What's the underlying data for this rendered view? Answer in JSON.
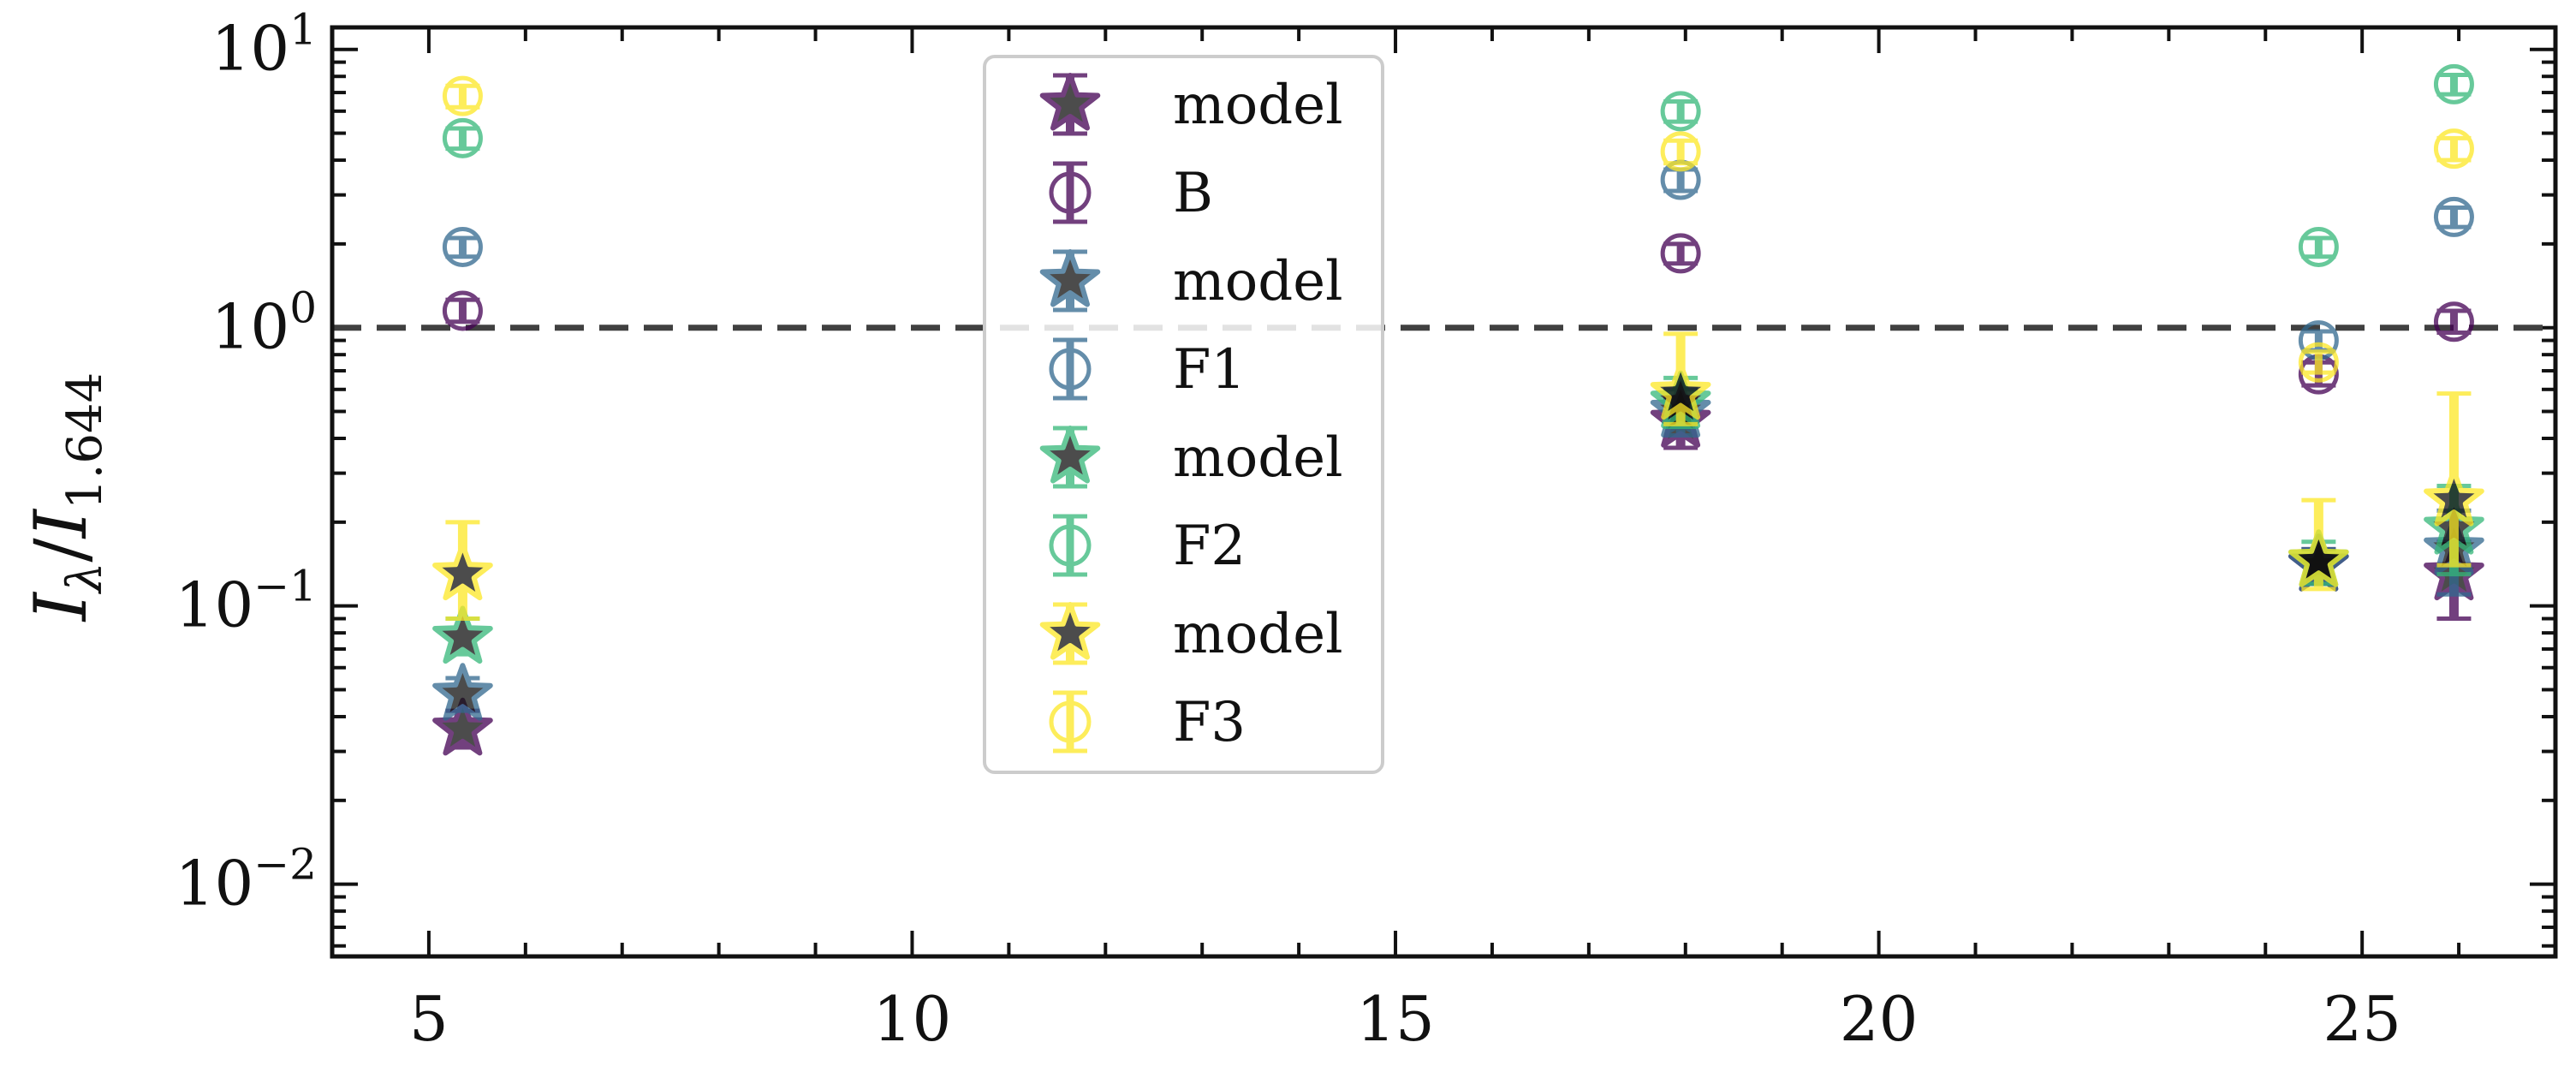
{
  "chart_data": {
    "type": "scatter",
    "title": "",
    "xlabel": "",
    "ylabel": "Iλ/I1.644",
    "ylabel_main": "I",
    "ylabel_sub1": "λ",
    "ylabel_sub2": "1.644",
    "xlim": [
      4,
      27
    ],
    "ylim": [
      0.0055,
      12
    ],
    "yscale": "log",
    "xticks": [
      5,
      10,
      15,
      20,
      25
    ],
    "xtick_labels": [
      "5",
      "10",
      "15",
      "20",
      "25"
    ],
    "yticks": [
      0.01,
      0.1,
      1,
      10
    ],
    "ytick_labels": [
      {
        "base": "10",
        "exp": "−2"
      },
      {
        "base": "10",
        "exp": "−1"
      },
      {
        "base": "10",
        "exp": "0"
      },
      {
        "base": "10",
        "exp": "1"
      }
    ],
    "reference_line": {
      "y": 1,
      "style": "dashed",
      "color": "#404040"
    },
    "grid": false,
    "legend": {
      "placement": "upper-center",
      "entries": [
        {
          "label": "model",
          "marker": "star",
          "color": "#440154"
        },
        {
          "label": "B",
          "marker": "circle",
          "color": "#440154"
        },
        {
          "label": "model",
          "marker": "star",
          "color": "#31688e"
        },
        {
          "label": "F1",
          "marker": "circle",
          "color": "#31688e"
        },
        {
          "label": "model",
          "marker": "star",
          "color": "#35b779"
        },
        {
          "label": "F2",
          "marker": "circle",
          "color": "#35b779"
        },
        {
          "label": "model",
          "marker": "star",
          "color": "#fde725"
        },
        {
          "label": "F3",
          "marker": "circle",
          "color": "#fde725"
        }
      ]
    },
    "series": [
      {
        "label": "B",
        "kind": "observed",
        "color": "#440154",
        "points": [
          {
            "x": 5.35,
            "y": 1.15,
            "lo": 1.05,
            "hi": 1.26
          },
          {
            "x": 17.95,
            "y": 1.85,
            "lo": 1.7,
            "hi": 2.0
          },
          {
            "x": 24.55,
            "y": 0.68,
            "lo": 0.62,
            "hi": 0.75
          },
          {
            "x": 25.95,
            "y": 1.05,
            "lo": 0.96,
            "hi": 1.15
          }
        ]
      },
      {
        "label": "F1",
        "kind": "observed",
        "color": "#31688e",
        "points": [
          {
            "x": 5.35,
            "y": 1.95,
            "lo": 1.8,
            "hi": 2.1
          },
          {
            "x": 17.95,
            "y": 3.4,
            "lo": 3.1,
            "hi": 3.7
          },
          {
            "x": 24.55,
            "y": 0.9,
            "lo": 0.83,
            "hi": 0.97
          },
          {
            "x": 25.95,
            "y": 2.5,
            "lo": 2.3,
            "hi": 2.7
          }
        ]
      },
      {
        "label": "F2",
        "kind": "observed",
        "color": "#35b779",
        "points": [
          {
            "x": 5.35,
            "y": 4.8,
            "lo": 4.4,
            "hi": 5.2
          },
          {
            "x": 17.95,
            "y": 6.0,
            "lo": 5.5,
            "hi": 6.5
          },
          {
            "x": 24.55,
            "y": 1.95,
            "lo": 1.8,
            "hi": 2.1
          },
          {
            "x": 25.95,
            "y": 7.5,
            "lo": 6.9,
            "hi": 8.1
          }
        ]
      },
      {
        "label": "F3",
        "kind": "observed",
        "color": "#fde725",
        "points": [
          {
            "x": 5.35,
            "y": 6.8,
            "lo": 6.2,
            "hi": 7.4
          },
          {
            "x": 17.95,
            "y": 4.3,
            "lo": 3.9,
            "hi": 4.7
          },
          {
            "x": 24.55,
            "y": 0.75,
            "lo": 0.69,
            "hi": 0.82
          },
          {
            "x": 25.95,
            "y": 4.4,
            "lo": 4.0,
            "hi": 4.8
          }
        ]
      },
      {
        "label": "model",
        "kind": "model",
        "color": "#440154",
        "points": [
          {
            "x": 5.35,
            "y": 0.036,
            "lo": 0.031,
            "hi": 0.042
          },
          {
            "x": 17.95,
            "y": 0.46,
            "lo": 0.37,
            "hi": 0.56
          },
          {
            "x": 24.55,
            "y": 0.14,
            "lo": 0.12,
            "hi": 0.16
          },
          {
            "x": 25.95,
            "y": 0.13,
            "lo": 0.09,
            "hi": 0.17
          }
        ]
      },
      {
        "label": "model",
        "kind": "model",
        "color": "#31688e",
        "points": [
          {
            "x": 5.35,
            "y": 0.048,
            "lo": 0.042,
            "hi": 0.055
          },
          {
            "x": 17.95,
            "y": 0.5,
            "lo": 0.41,
            "hi": 0.6
          },
          {
            "x": 24.55,
            "y": 0.14,
            "lo": 0.12,
            "hi": 0.16
          },
          {
            "x": 25.95,
            "y": 0.16,
            "lo": 0.11,
            "hi": 0.22
          }
        ]
      },
      {
        "label": "model",
        "kind": "model",
        "color": "#35b779",
        "points": [
          {
            "x": 5.35,
            "y": 0.077,
            "lo": 0.067,
            "hi": 0.09
          },
          {
            "x": 17.95,
            "y": 0.54,
            "lo": 0.44,
            "hi": 0.66
          },
          {
            "x": 24.55,
            "y": 0.145,
            "lo": 0.12,
            "hi": 0.17
          },
          {
            "x": 25.95,
            "y": 0.19,
            "lo": 0.13,
            "hi": 0.27
          }
        ]
      },
      {
        "label": "model",
        "kind": "model",
        "color": "#fde725",
        "points": [
          {
            "x": 5.35,
            "y": 0.13,
            "lo": 0.09,
            "hi": 0.2
          },
          {
            "x": 17.95,
            "y": 0.58,
            "lo": 0.45,
            "hi": 0.95
          },
          {
            "x": 24.55,
            "y": 0.145,
            "lo": 0.115,
            "hi": 0.24
          },
          {
            "x": 25.95,
            "y": 0.24,
            "lo": 0.14,
            "hi": 0.58
          }
        ]
      }
    ]
  }
}
